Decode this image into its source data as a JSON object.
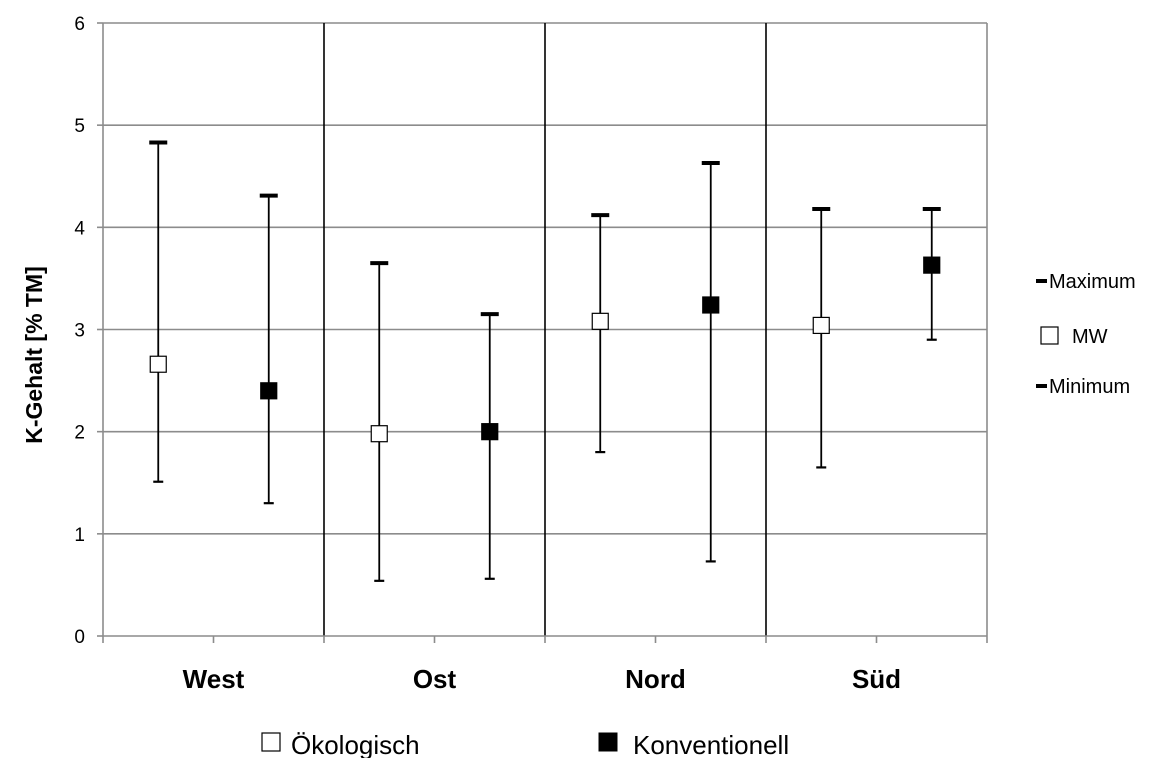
{
  "chart_data": {
    "type": "error-bar",
    "ylabel": "K-Gehalt [% TM]",
    "xlabel": "",
    "ylim": [
      0,
      6
    ],
    "yticks": [
      0,
      1,
      2,
      3,
      4,
      5,
      6
    ],
    "grid": true,
    "categories": [
      "West",
      "Ost",
      "Nord",
      "Süd"
    ],
    "series": [
      {
        "name": "Ökologisch",
        "marker": "open-square",
        "color": "#ffffff",
        "mean": [
          2.66,
          1.98,
          3.08,
          3.04
        ],
        "max": [
          4.83,
          3.65,
          4.12,
          4.18
        ],
        "min": [
          1.51,
          0.54,
          1.8,
          1.65
        ]
      },
      {
        "name": "Konventionell",
        "marker": "filled-square",
        "color": "#000000",
        "mean": [
          2.4,
          2.0,
          3.24,
          3.63
        ],
        "max": [
          4.31,
          3.15,
          4.63,
          4.18
        ],
        "min": [
          1.3,
          0.56,
          0.73,
          2.9
        ]
      }
    ],
    "right_legend": [
      "Maximum",
      "MW",
      "Minimum"
    ],
    "legend_position": "right and bottom"
  }
}
